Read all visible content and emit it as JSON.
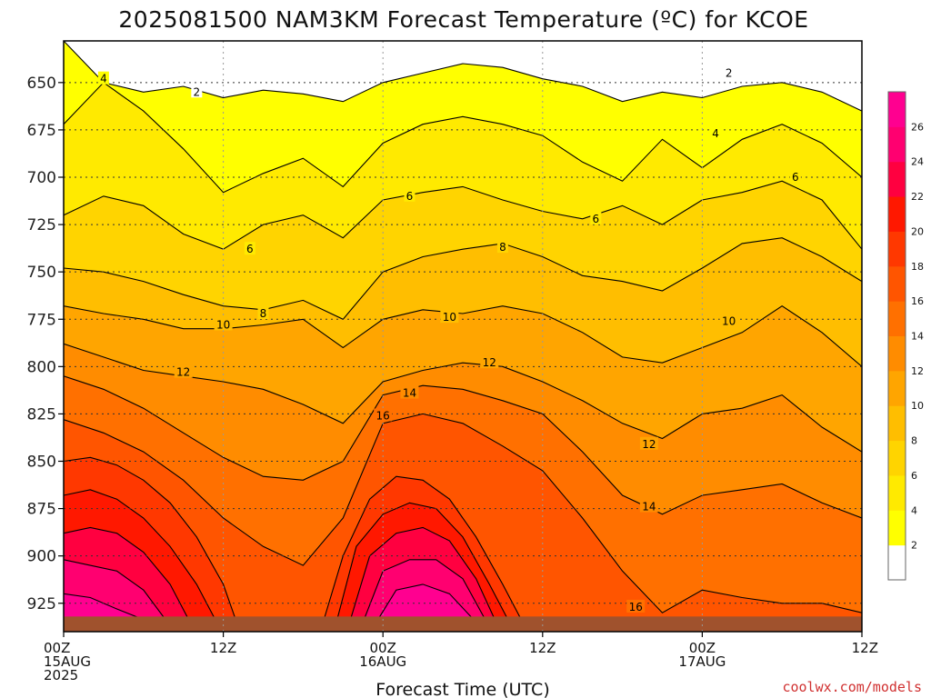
{
  "chart_data": {
    "type": "filled-contour",
    "title": "2025081500 NAM3KM Forecast Temperature (ºC) for KCOE",
    "xlabel": "Forecast Time (UTC)",
    "ylabel": "",
    "credit": "coolwx.com/models",
    "y_axis": {
      "unit": "hPa",
      "reversed": true,
      "range": [
        628,
        940
      ],
      "ticks": [
        650,
        675,
        700,
        725,
        750,
        775,
        800,
        825,
        850,
        875,
        900,
        925
      ]
    },
    "x_axis": {
      "range_hours": [
        0,
        60
      ],
      "ticks": [
        {
          "hour": 0,
          "lines": [
            "00Z",
            "15AUG",
            "2025"
          ]
        },
        {
          "hour": 12,
          "lines": [
            "12Z"
          ]
        },
        {
          "hour": 24,
          "lines": [
            "00Z",
            "16AUG"
          ]
        },
        {
          "hour": 36,
          "lines": [
            "12Z"
          ]
        },
        {
          "hour": 48,
          "lines": [
            "00Z",
            "17AUG"
          ]
        },
        {
          "hour": 60,
          "lines": [
            "12Z"
          ]
        }
      ]
    },
    "colorbar": {
      "levels": [
        0,
        2,
        4,
        6,
        8,
        10,
        12,
        14,
        16,
        18,
        20,
        22,
        24,
        26,
        28
      ],
      "tick_labels": [
        2,
        4,
        6,
        8,
        10,
        12,
        14,
        16,
        18,
        20,
        22,
        24,
        26
      ],
      "colors": [
        "#ffffff",
        "#ffff00",
        "#ffea00",
        "#ffd400",
        "#ffbe00",
        "#ffa500",
        "#ff8c00",
        "#ff7000",
        "#ff5500",
        "#ff3800",
        "#ff1800",
        "#ff0040",
        "#ff0070",
        "#ff0090"
      ]
    },
    "grid": true,
    "series": [
      {
        "level": 2,
        "hours": [
          0,
          3,
          6,
          9,
          12,
          15,
          18,
          21,
          24,
          27,
          30,
          33,
          36,
          39,
          42,
          45,
          48,
          51,
          54,
          57,
          60
        ],
        "pressure": [
          628,
          650,
          655,
          652,
          658,
          654,
          656,
          660,
          650,
          645,
          640,
          642,
          648,
          652,
          660,
          655,
          658,
          652,
          650,
          655,
          665
        ]
      },
      {
        "level": 4,
        "hours": [
          0,
          3,
          6,
          9,
          12,
          15,
          18,
          21,
          24,
          27,
          30,
          33,
          36,
          39,
          42,
          45,
          48,
          51,
          54,
          57,
          60
        ],
        "pressure": [
          672,
          650,
          665,
          685,
          708,
          698,
          690,
          705,
          682,
          672,
          668,
          672,
          678,
          692,
          702,
          680,
          695,
          680,
          672,
          682,
          700
        ]
      },
      {
        "level": 6,
        "hours": [
          0,
          3,
          6,
          9,
          12,
          15,
          18,
          21,
          24,
          27,
          30,
          33,
          36,
          39,
          42,
          45,
          48,
          51,
          54,
          57,
          60
        ],
        "pressure": [
          720,
          710,
          715,
          730,
          738,
          725,
          720,
          732,
          712,
          708,
          705,
          712,
          718,
          722,
          715,
          725,
          712,
          708,
          702,
          712,
          738
        ]
      },
      {
        "level": 8,
        "hours": [
          0,
          3,
          6,
          9,
          12,
          15,
          18,
          21,
          24,
          27,
          30,
          33,
          36,
          39,
          42,
          45,
          48,
          51,
          54,
          57,
          60
        ],
        "pressure": [
          748,
          750,
          755,
          762,
          768,
          770,
          765,
          775,
          750,
          742,
          738,
          735,
          742,
          752,
          755,
          760,
          748,
          735,
          732,
          742,
          755
        ]
      },
      {
        "level": 10,
        "hours": [
          0,
          3,
          6,
          9,
          12,
          15,
          18,
          21,
          24,
          27,
          30,
          33,
          36,
          39,
          42,
          45,
          48,
          51,
          54,
          57,
          60
        ],
        "pressure": [
          768,
          772,
          775,
          780,
          780,
          778,
          775,
          790,
          775,
          770,
          772,
          768,
          772,
          782,
          795,
          798,
          790,
          782,
          768,
          782,
          800
        ]
      },
      {
        "level": 12,
        "hours": [
          0,
          3,
          6,
          9,
          12,
          15,
          18,
          21,
          24,
          27,
          30,
          33,
          36,
          39,
          42,
          45,
          48,
          51,
          54,
          57,
          60
        ],
        "pressure": [
          788,
          795,
          802,
          805,
          808,
          812,
          820,
          830,
          808,
          802,
          798,
          800,
          808,
          818,
          830,
          838,
          825,
          822,
          815,
          832,
          845
        ]
      },
      {
        "level": 14,
        "hours": [
          0,
          3,
          6,
          9,
          12,
          15,
          18,
          21,
          24,
          27,
          30,
          33,
          36,
          39,
          42,
          45,
          48,
          51,
          54,
          57,
          60
        ],
        "pressure": [
          805,
          812,
          822,
          835,
          848,
          858,
          860,
          850,
          815,
          810,
          812,
          818,
          825,
          845,
          868,
          878,
          868,
          865,
          862,
          872,
          880
        ]
      },
      {
        "level": 16,
        "hours": [
          0,
          3,
          6,
          9,
          12,
          15,
          18,
          21,
          24,
          27,
          30,
          33,
          36,
          39,
          42,
          45,
          48,
          51,
          54,
          57,
          60
        ],
        "pressure": [
          828,
          835,
          845,
          860,
          880,
          895,
          905,
          880,
          830,
          825,
          830,
          842,
          855,
          880,
          908,
          930,
          918,
          922,
          925,
          925,
          930
        ]
      },
      {
        "level": 18,
        "hours": [
          0,
          2,
          4,
          6,
          8,
          10,
          12,
          13
        ],
        "pressure": [
          850,
          848,
          852,
          860,
          872,
          890,
          915,
          935
        ]
      },
      {
        "level": 20,
        "hours": [
          0,
          2,
          4,
          6,
          8,
          10,
          11.5
        ],
        "pressure": [
          868,
          865,
          870,
          880,
          895,
          915,
          935
        ]
      },
      {
        "level": 22,
        "hours": [
          0,
          2,
          4,
          6,
          8,
          9.5
        ],
        "pressure": [
          888,
          885,
          888,
          898,
          915,
          935
        ]
      },
      {
        "level": 24,
        "hours": [
          0,
          2,
          4,
          6,
          7.8
        ],
        "pressure": [
          902,
          905,
          908,
          918,
          935
        ]
      },
      {
        "level": 26,
        "hours": [
          0,
          2,
          4,
          6.5
        ],
        "pressure": [
          920,
          922,
          928,
          935
        ]
      },
      {
        "level": 18,
        "hours": [
          19.5,
          21,
          23,
          25,
          27,
          29,
          31,
          33,
          34.5
        ],
        "pressure": [
          935,
          900,
          870,
          858,
          860,
          870,
          890,
          915,
          935
        ]
      },
      {
        "level": 20,
        "hours": [
          20.5,
          22,
          24,
          26,
          28,
          30,
          32,
          33.5
        ],
        "pressure": [
          935,
          895,
          878,
          872,
          875,
          890,
          915,
          935
        ]
      },
      {
        "level": 22,
        "hours": [
          21.5,
          23,
          25,
          27,
          29,
          31,
          32.5
        ],
        "pressure": [
          935,
          900,
          888,
          885,
          892,
          912,
          935
        ]
      },
      {
        "level": 24,
        "hours": [
          22.5,
          24,
          26,
          28,
          30,
          31.8
        ],
        "pressure": [
          935,
          908,
          902,
          902,
          912,
          935
        ]
      },
      {
        "level": 26,
        "hours": [
          23.5,
          25,
          27,
          29,
          31
        ],
        "pressure": [
          935,
          918,
          915,
          920,
          935
        ]
      }
    ],
    "contour_labels": [
      {
        "text": "4",
        "hour": 3,
        "pressure": 648
      },
      {
        "text": "2",
        "hour": 10,
        "pressure": 655
      },
      {
        "text": "2",
        "hour": 50,
        "pressure": 645
      },
      {
        "text": "4",
        "hour": 49,
        "pressure": 677
      },
      {
        "text": "6",
        "hour": 26,
        "pressure": 710
      },
      {
        "text": "6",
        "hour": 40,
        "pressure": 722
      },
      {
        "text": "6",
        "hour": 55,
        "pressure": 700
      },
      {
        "text": "6",
        "hour": 14,
        "pressure": 738
      },
      {
        "text": "8",
        "hour": 33,
        "pressure": 737
      },
      {
        "text": "8",
        "hour": 15,
        "pressure": 772
      },
      {
        "text": "10",
        "hour": 12,
        "pressure": 778
      },
      {
        "text": "10",
        "hour": 29,
        "pressure": 774
      },
      {
        "text": "10",
        "hour": 50,
        "pressure": 776
      },
      {
        "text": "12",
        "hour": 9,
        "pressure": 803
      },
      {
        "text": "12",
        "hour": 32,
        "pressure": 798
      },
      {
        "text": "12",
        "hour": 44,
        "pressure": 841
      },
      {
        "text": "14",
        "hour": 26,
        "pressure": 814
      },
      {
        "text": "14",
        "hour": 44,
        "pressure": 874
      },
      {
        "text": "16",
        "hour": 24,
        "pressure": 826
      },
      {
        "text": "16",
        "hour": 43,
        "pressure": 927
      }
    ],
    "terrain": {
      "color": "#a0522d",
      "pressure_top": 932
    }
  }
}
